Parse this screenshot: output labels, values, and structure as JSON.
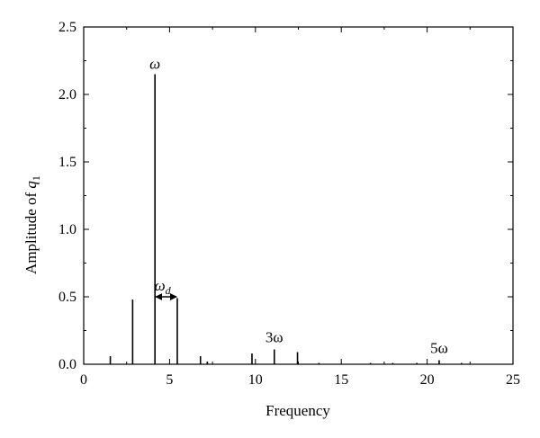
{
  "chart_data": {
    "type": "stem",
    "xlabel": "Frequency",
    "ylabel_prefix": "Amplitude of ",
    "ylabel_var": "q",
    "ylabel_sub": "1",
    "xlim": [
      0,
      25
    ],
    "ylim": [
      0,
      2.5
    ],
    "xticks": [
      "0",
      "5",
      "10",
      "15",
      "20",
      "25"
    ],
    "yticks": [
      "0.0",
      "0.5",
      "1.0",
      "1.5",
      "2.0",
      "2.5"
    ],
    "xtick_values": [
      0,
      5,
      10,
      15,
      20,
      25
    ],
    "ytick_values": [
      0,
      0.5,
      1.0,
      1.5,
      2.0,
      2.5
    ],
    "x_minor_step": 2.5,
    "y_minor_step": 0.25,
    "grid": false,
    "points": [
      {
        "x": 1.55,
        "y": 0.06
      },
      {
        "x": 2.85,
        "y": 0.48
      },
      {
        "x": 4.15,
        "y": 2.15
      },
      {
        "x": 5.45,
        "y": 0.49
      },
      {
        "x": 6.8,
        "y": 0.06
      },
      {
        "x": 7.2,
        "y": 0.02
      },
      {
        "x": 9.8,
        "y": 0.08
      },
      {
        "x": 11.1,
        "y": 0.11
      },
      {
        "x": 12.45,
        "y": 0.09
      },
      {
        "x": 13.7,
        "y": 0.01
      },
      {
        "x": 16.7,
        "y": 0.01
      },
      {
        "x": 18.0,
        "y": 0.01
      },
      {
        "x": 19.4,
        "y": 0.01
      },
      {
        "x": 20.7,
        "y": 0.03
      },
      {
        "x": 22.0,
        "y": 0.01
      }
    ],
    "annotations": [
      {
        "id": "omega",
        "label": "ω",
        "x": 4.15,
        "y": 2.15
      },
      {
        "id": "omega_d",
        "label": "ω",
        "sub": "d",
        "x_from": 4.15,
        "x_to": 5.45,
        "y": 0.5
      },
      {
        "id": "three_omega",
        "label": "3ω",
        "x": 11.1,
        "y": 0.11
      },
      {
        "id": "five_omega",
        "label": "5ω",
        "x": 20.7,
        "y": 0.03
      }
    ]
  }
}
